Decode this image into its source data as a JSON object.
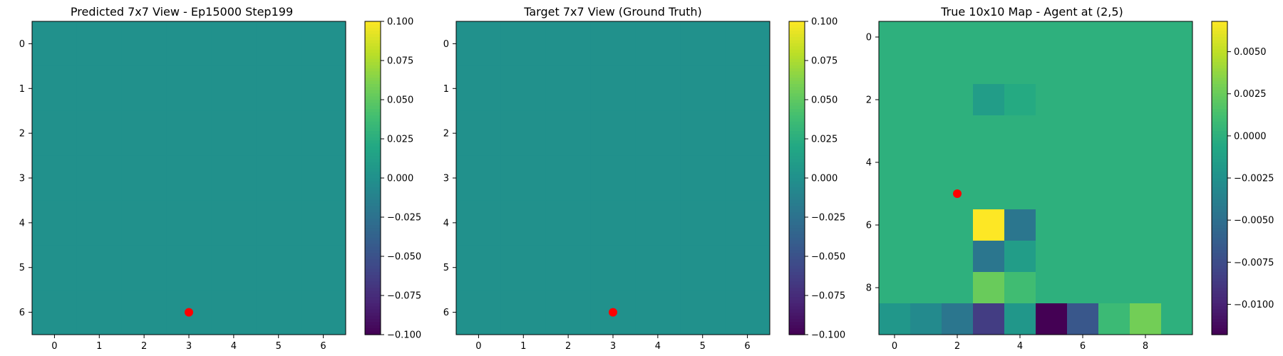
{
  "chart_data": [
    {
      "type": "heatmap",
      "title": "Predicted 7x7 View - Ep15000 Step199",
      "rows": 7,
      "cols": 7,
      "xticks": [
        0,
        1,
        2,
        3,
        4,
        5,
        6
      ],
      "yticks": [
        0,
        1,
        2,
        3,
        4,
        5,
        6
      ],
      "values": [
        [
          0,
          0,
          0,
          0,
          0,
          0,
          0
        ],
        [
          0,
          0,
          0,
          0,
          0,
          0,
          0
        ],
        [
          0,
          0,
          0,
          0,
          0,
          0,
          0
        ],
        [
          0,
          0,
          0,
          0,
          0,
          0,
          0
        ],
        [
          0,
          0,
          0,
          0,
          0,
          0,
          0
        ],
        [
          0,
          0,
          0,
          0,
          0,
          0,
          0
        ],
        [
          0,
          0,
          0,
          0,
          0,
          0,
          0
        ]
      ],
      "vmin": -0.1,
      "vmax": 0.1,
      "colorbar_ticks": [
        "0.100",
        "0.075",
        "0.050",
        "0.025",
        "0.000",
        "−0.025",
        "−0.050",
        "−0.075",
        "−0.100"
      ],
      "colorbar_tick_values": [
        0.1,
        0.075,
        0.05,
        0.025,
        0,
        -0.025,
        -0.05,
        -0.075,
        -0.1
      ],
      "marker": {
        "x": 3,
        "y": 6,
        "color": "#ff0000"
      }
    },
    {
      "type": "heatmap",
      "title": "Target 7x7 View (Ground Truth)",
      "rows": 7,
      "cols": 7,
      "xticks": [
        0,
        1,
        2,
        3,
        4,
        5,
        6
      ],
      "yticks": [
        0,
        1,
        2,
        3,
        4,
        5,
        6
      ],
      "values": [
        [
          0,
          0,
          0,
          0,
          0,
          0,
          0
        ],
        [
          0,
          0,
          0,
          0,
          0,
          0,
          0
        ],
        [
          0,
          0,
          0,
          0,
          0,
          0,
          0
        ],
        [
          0,
          0,
          0,
          0,
          0,
          0,
          0
        ],
        [
          0,
          0,
          0,
          0,
          0,
          0,
          0
        ],
        [
          0,
          0,
          0,
          0,
          0,
          0,
          0
        ],
        [
          0,
          0,
          0,
          0,
          0,
          0,
          0
        ]
      ],
      "vmin": -0.1,
      "vmax": 0.1,
      "colorbar_ticks": [
        "0.100",
        "0.075",
        "0.050",
        "0.025",
        "0.000",
        "−0.025",
        "−0.050",
        "−0.075",
        "−0.100"
      ],
      "colorbar_tick_values": [
        0.1,
        0.075,
        0.05,
        0.025,
        0,
        -0.025,
        -0.05,
        -0.075,
        -0.1
      ],
      "marker": {
        "x": 3,
        "y": 6,
        "color": "#ff0000"
      }
    },
    {
      "type": "heatmap",
      "title": "True 10x10 Map - Agent at (2,5)",
      "rows": 10,
      "cols": 10,
      "xticks": [
        0,
        2,
        4,
        6,
        8
      ],
      "yticks": [
        0,
        2,
        4,
        6,
        8
      ],
      "values": [
        [
          0,
          0,
          0,
          0,
          0,
          0,
          0,
          0,
          0,
          0
        ],
        [
          0,
          0,
          0,
          0,
          0,
          0,
          0,
          0,
          0,
          0
        ],
        [
          0,
          0,
          0,
          -0.0015,
          -0.0005,
          0,
          0,
          0,
          0,
          0
        ],
        [
          0,
          0,
          0,
          0,
          0,
          0,
          0,
          0,
          0,
          0
        ],
        [
          0,
          0,
          0,
          0,
          0,
          0,
          0,
          0,
          0,
          0
        ],
        [
          0,
          0,
          0,
          0,
          0,
          0,
          0,
          0,
          0,
          0
        ],
        [
          0,
          0,
          0,
          0.0068,
          -0.0045,
          0,
          0,
          0,
          0,
          0
        ],
        [
          0,
          0,
          0,
          -0.0045,
          -0.0015,
          0,
          0,
          0,
          0,
          0
        ],
        [
          0,
          0,
          0,
          0.0025,
          0.001,
          0,
          0,
          0,
          0,
          0
        ],
        [
          -0.002,
          -0.003,
          -0.0045,
          -0.0085,
          -0.002,
          -0.0118,
          -0.0068,
          0.0008,
          0.0028,
          0
        ]
      ],
      "vmin": -0.0118,
      "vmax": 0.0068,
      "colorbar_ticks": [
        "0.0050",
        "0.0025",
        "0.0000",
        "−0.0025",
        "−0.0050",
        "−0.0075",
        "−0.0100"
      ],
      "colorbar_tick_values": [
        0.005,
        0.0025,
        0,
        -0.0025,
        -0.005,
        -0.0075,
        -0.01
      ],
      "marker": {
        "x": 2,
        "y": 5,
        "color": "#ff0000"
      }
    }
  ]
}
